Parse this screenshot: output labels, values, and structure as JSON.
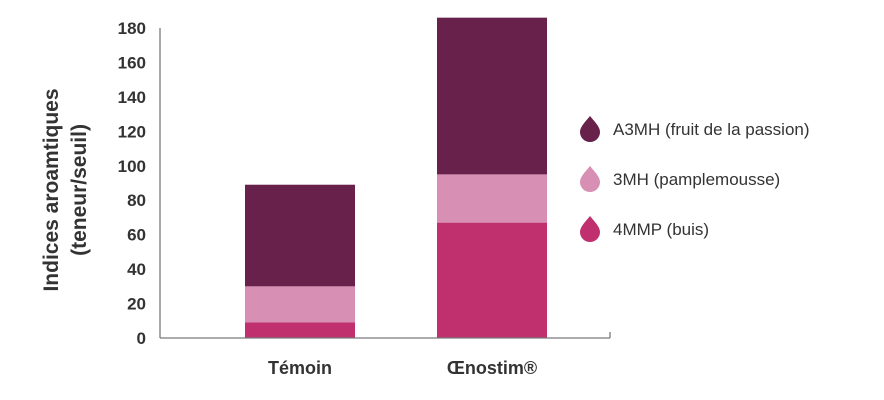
{
  "chart_data": {
    "type": "bar",
    "stacked": true,
    "categories": [
      "Témoin",
      "Œnostim®"
    ],
    "series": [
      {
        "name": "4MMP (buis)",
        "values": [
          9,
          67
        ],
        "color": "#c0306e"
      },
      {
        "name": "3MH (pamplemousse)",
        "values": [
          21,
          28
        ],
        "color": "#d78fb4"
      },
      {
        "name": "A3MH (fruit de la passion)",
        "values": [
          59,
          91
        ],
        "color": "#67214a"
      }
    ],
    "ylabel_line1": "Indices aroamtiques",
    "ylabel_line2": "(teneur/seuil)",
    "ylim": [
      0,
      180
    ],
    "yticks": [
      0,
      20,
      40,
      60,
      80,
      100,
      120,
      140,
      160,
      180
    ],
    "legend_position": "right",
    "legend_order": [
      2,
      1,
      0
    ],
    "legend_icon": "drop-icon",
    "grid": false
  }
}
